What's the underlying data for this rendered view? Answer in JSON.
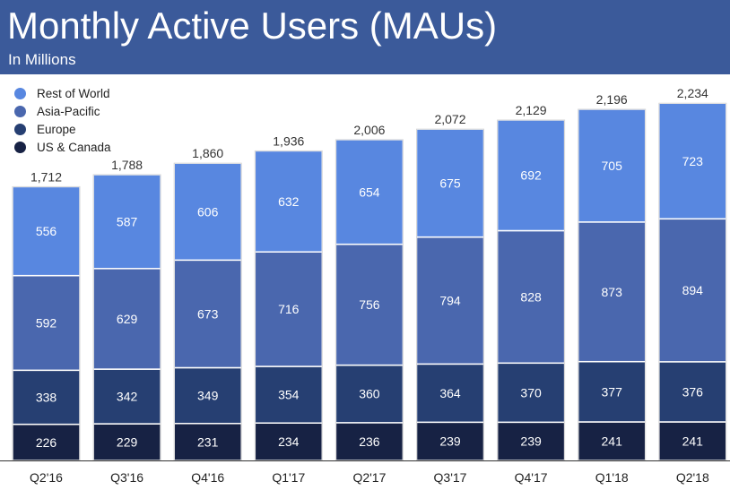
{
  "header": {
    "title": "Monthly Active Users (MAUs)",
    "subtitle": "In Millions",
    "background": "#3b5a9a"
  },
  "chart_data": {
    "type": "bar",
    "stacked": true,
    "title": "Monthly Active Users (MAUs)",
    "subtitle": "In Millions",
    "xlabel": "",
    "ylabel": "",
    "categories": [
      "Q2'16",
      "Q3'16",
      "Q4'16",
      "Q1'17",
      "Q2'17",
      "Q3'17",
      "Q4'17",
      "Q1'18",
      "Q2'18"
    ],
    "series": [
      {
        "name": "US & Canada",
        "color": "#172244",
        "values": [
          226,
          229,
          231,
          234,
          236,
          239,
          239,
          241,
          241
        ]
      },
      {
        "name": "Europe",
        "color": "#263f72",
        "values": [
          338,
          342,
          349,
          354,
          360,
          364,
          370,
          377,
          376
        ]
      },
      {
        "name": "Asia-Pacific",
        "color": "#4a67ae",
        "values": [
          592,
          629,
          673,
          716,
          756,
          794,
          828,
          873,
          894
        ]
      },
      {
        "name": "Rest of World",
        "color": "#5887e0",
        "values": [
          556,
          587,
          606,
          632,
          654,
          675,
          692,
          705,
          723
        ]
      }
    ],
    "totals": [
      "1,712",
      "1,788",
      "1,860",
      "1,936",
      "2,006",
      "2,072",
      "2,129",
      "2,196",
      "2,234"
    ],
    "ylim": [
      0,
      2300
    ],
    "grid": false,
    "legend_position": "top-left",
    "legend_order": [
      "Rest of World",
      "Asia-Pacific",
      "Europe",
      "US & Canada"
    ]
  }
}
